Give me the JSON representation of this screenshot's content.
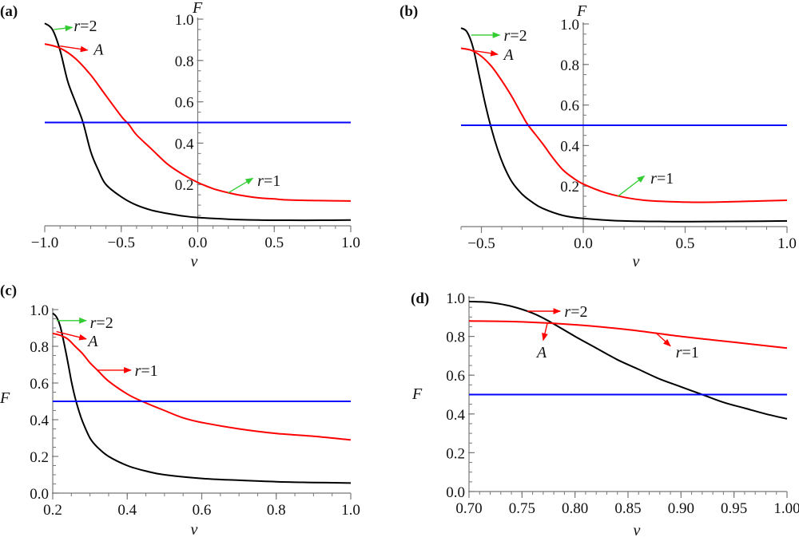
{
  "chart_data": [
    {
      "type": "line",
      "panel_label": "(a)",
      "title": "",
      "xlabel": "v",
      "ylabel": "F",
      "xlim": [
        -1.0,
        1.0
      ],
      "ylim": [
        0.0,
        1.0
      ],
      "x_ticks": [
        "−1.0",
        "−0.5",
        "0.0",
        "0.5",
        "1.0"
      ],
      "x_tick_values": [
        -1.0,
        -0.5,
        0.0,
        0.5,
        1.0
      ],
      "y_ticks": [
        "0.2",
        "0.4",
        "0.6",
        "0.8",
        "1.0"
      ],
      "y_tick_values": [
        0.2,
        0.4,
        0.6,
        0.8,
        1.0
      ],
      "y_axis_at_x": 0.0,
      "grid": false,
      "series": [
        {
          "name": "r=2",
          "color": "#000000",
          "x": [
            -1.0,
            -0.95,
            -0.9,
            -0.85,
            -0.8,
            -0.75,
            -0.7,
            -0.65,
            -0.6,
            -0.5,
            -0.4,
            -0.3,
            -0.2,
            -0.1,
            0.0,
            0.2,
            0.4,
            0.6,
            0.8,
            1.0
          ],
          "y": [
            0.98,
            0.95,
            0.85,
            0.7,
            0.6,
            0.5,
            0.36,
            0.27,
            0.2,
            0.14,
            0.1,
            0.075,
            0.06,
            0.048,
            0.04,
            0.032,
            0.028,
            0.027,
            0.027,
            0.028
          ]
        },
        {
          "name": "r=1",
          "color": "#ff0000",
          "x": [
            -1.0,
            -0.9,
            -0.8,
            -0.7,
            -0.6,
            -0.5,
            -0.45,
            -0.4,
            -0.3,
            -0.2,
            -0.1,
            0.0,
            0.1,
            0.2,
            0.3,
            0.4,
            0.5,
            0.6,
            0.8,
            1.0
          ],
          "y": [
            0.88,
            0.86,
            0.81,
            0.73,
            0.63,
            0.53,
            0.49,
            0.44,
            0.37,
            0.3,
            0.25,
            0.21,
            0.18,
            0.16,
            0.145,
            0.135,
            0.13,
            0.125,
            0.122,
            0.12
          ]
        },
        {
          "name": "F=0.5",
          "color": "#0000ff",
          "x": [
            -1.0,
            1.0
          ],
          "y": [
            0.5,
            0.5
          ]
        }
      ],
      "annotations": [
        {
          "text_pre": "r",
          "text_post": "=2",
          "arrow_color": "#33cc33",
          "from": [
            -0.94,
            0.95
          ],
          "to": [
            -0.82,
            0.96
          ],
          "text_at": [
            -0.81,
            0.97
          ]
        },
        {
          "text_pre": "A",
          "text_post": "",
          "arrow_color": "#ff0000",
          "from": [
            -0.9,
            0.87
          ],
          "to": [
            -0.72,
            0.85
          ],
          "text_at": [
            -0.68,
            0.855
          ]
        },
        {
          "text_pre": "r",
          "text_post": "=1",
          "arrow_color": "#33cc33",
          "from": [
            0.2,
            0.16
          ],
          "to": [
            0.36,
            0.23
          ],
          "text_at": [
            0.39,
            0.22
          ]
        }
      ]
    },
    {
      "type": "line",
      "panel_label": "(b)",
      "title": "",
      "xlabel": "v",
      "ylabel": "F",
      "xlim": [
        -0.6,
        1.0
      ],
      "ylim": [
        0.0,
        1.0
      ],
      "x_ticks": [
        "−0.5",
        "0.0",
        "0.5",
        "1.0"
      ],
      "x_tick_values": [
        -0.5,
        0.0,
        0.5,
        1.0
      ],
      "y_ticks": [
        "0.2",
        "0.4",
        "0.6",
        "0.8",
        "1.0"
      ],
      "y_tick_values": [
        0.2,
        0.4,
        0.6,
        0.8,
        1.0
      ],
      "y_axis_at_x": 0.0,
      "grid": false,
      "series": [
        {
          "name": "r=2",
          "color": "#000000",
          "x": [
            -0.6,
            -0.57,
            -0.54,
            -0.51,
            -0.48,
            -0.45,
            -0.42,
            -0.39,
            -0.35,
            -0.3,
            -0.25,
            -0.2,
            -0.1,
            0.0,
            0.2,
            0.4,
            0.6,
            0.8,
            1.0
          ],
          "y": [
            0.98,
            0.96,
            0.88,
            0.74,
            0.6,
            0.48,
            0.38,
            0.3,
            0.22,
            0.16,
            0.12,
            0.09,
            0.055,
            0.04,
            0.028,
            0.025,
            0.025,
            0.026,
            0.028
          ]
        },
        {
          "name": "r=1",
          "color": "#ff0000",
          "x": [
            -0.6,
            -0.55,
            -0.5,
            -0.45,
            -0.4,
            -0.35,
            -0.3,
            -0.27,
            -0.2,
            -0.15,
            -0.1,
            -0.05,
            0.0,
            0.1,
            0.2,
            0.3,
            0.4,
            0.55,
            0.7,
            0.85,
            1.0
          ],
          "y": [
            0.88,
            0.87,
            0.84,
            0.79,
            0.72,
            0.64,
            0.55,
            0.5,
            0.41,
            0.34,
            0.28,
            0.24,
            0.21,
            0.17,
            0.145,
            0.13,
            0.124,
            0.12,
            0.122,
            0.126,
            0.13
          ]
        },
        {
          "name": "F=0.5",
          "color": "#0000ff",
          "x": [
            -0.6,
            1.0
          ],
          "y": [
            0.5,
            0.5
          ]
        }
      ],
      "annotations": [
        {
          "text_pre": "r",
          "text_post": "=2",
          "arrow_color": "#33cc33",
          "from": [
            -0.55,
            0.945
          ],
          "to": [
            -0.41,
            0.945
          ],
          "text_at": [
            -0.39,
            0.945
          ]
        },
        {
          "text_pre": "A",
          "text_post": "",
          "arrow_color": "#ff0000",
          "from": [
            -0.55,
            0.87
          ],
          "to": [
            -0.42,
            0.85
          ],
          "text_at": [
            -0.39,
            0.85
          ]
        },
        {
          "text_pre": "r",
          "text_post": "=1",
          "arrow_color": "#33cc33",
          "from": [
            0.17,
            0.15
          ],
          "to": [
            0.3,
            0.25
          ],
          "text_at": [
            0.33,
            0.24
          ]
        }
      ]
    },
    {
      "type": "line",
      "panel_label": "(c)",
      "title": "",
      "xlabel": "v",
      "ylabel": "F",
      "xlim": [
        0.2,
        1.0
      ],
      "ylim": [
        0.0,
        1.0
      ],
      "x_ticks": [
        "0.2",
        "0.4",
        "0.6",
        "0.8",
        "1.0"
      ],
      "x_tick_values": [
        0.2,
        0.4,
        0.6,
        0.8,
        1.0
      ],
      "y_ticks": [
        "0.0",
        "0.2",
        "0.4",
        "0.6",
        "0.8",
        "1.0"
      ],
      "y_tick_values": [
        0.0,
        0.2,
        0.4,
        0.6,
        0.8,
        1.0
      ],
      "y_axis_at_x": 0.2,
      "grid": false,
      "series": [
        {
          "name": "r=2",
          "color": "#000000",
          "x": [
            0.2,
            0.21,
            0.22,
            0.23,
            0.24,
            0.25,
            0.26,
            0.27,
            0.28,
            0.3,
            0.32,
            0.35,
            0.4,
            0.45,
            0.5,
            0.6,
            0.7,
            0.8,
            0.9,
            1.0
          ],
          "y": [
            0.98,
            0.96,
            0.91,
            0.82,
            0.72,
            0.61,
            0.52,
            0.45,
            0.39,
            0.3,
            0.25,
            0.2,
            0.15,
            0.12,
            0.1,
            0.08,
            0.07,
            0.062,
            0.058,
            0.055
          ]
        },
        {
          "name": "r=1",
          "color": "#ff0000",
          "x": [
            0.2,
            0.22,
            0.24,
            0.26,
            0.28,
            0.3,
            0.32,
            0.35,
            0.4,
            0.44,
            0.5,
            0.55,
            0.6,
            0.7,
            0.8,
            0.9,
            1.0
          ],
          "y": [
            0.87,
            0.86,
            0.84,
            0.8,
            0.76,
            0.71,
            0.67,
            0.61,
            0.54,
            0.5,
            0.45,
            0.41,
            0.385,
            0.35,
            0.325,
            0.31,
            0.29
          ]
        },
        {
          "name": "F=0.5",
          "color": "#0000ff",
          "x": [
            0.2,
            1.0
          ],
          "y": [
            0.5,
            0.5
          ]
        }
      ],
      "annotations": [
        {
          "text_pre": "r",
          "text_post": "=2",
          "arrow_color": "#33cc33",
          "from": [
            0.21,
            0.94
          ],
          "to": [
            0.29,
            0.94
          ],
          "text_at": [
            0.3,
            0.93
          ]
        },
        {
          "text_pre": "A",
          "text_post": "",
          "arrow_color": "#ff0000",
          "from": [
            0.21,
            0.88
          ],
          "to": [
            0.29,
            0.84
          ],
          "text_at": [
            0.295,
            0.83
          ]
        },
        {
          "text_pre": "r",
          "text_post": "=1",
          "arrow_color": "#ff0000",
          "from": [
            0.32,
            0.67
          ],
          "to": [
            0.41,
            0.67
          ],
          "text_at": [
            0.42,
            0.67
          ]
        }
      ]
    },
    {
      "type": "line",
      "panel_label": "(d)",
      "title": "",
      "xlabel": "v",
      "ylabel": "F",
      "xlim": [
        0.7,
        1.0
      ],
      "ylim": [
        0.0,
        1.0
      ],
      "x_ticks": [
        "0.70",
        "0.75",
        "0.80",
        "0.85",
        "0.90",
        "0.95",
        "1.00"
      ],
      "x_tick_values": [
        0.7,
        0.75,
        0.8,
        0.85,
        0.9,
        0.95,
        1.0
      ],
      "y_ticks": [
        "0.0",
        "0.2",
        "0.4",
        "0.6",
        "0.8",
        "1.0"
      ],
      "y_tick_values": [
        0.0,
        0.2,
        0.4,
        0.6,
        0.8,
        1.0
      ],
      "y_axis_at_x": 0.7,
      "grid": false,
      "series": [
        {
          "name": "r=2",
          "color": "#000000",
          "x": [
            0.7,
            0.72,
            0.74,
            0.76,
            0.775,
            0.8,
            0.82,
            0.84,
            0.86,
            0.88,
            0.9,
            0.92,
            0.94,
            0.96,
            0.98,
            1.0
          ],
          "y": [
            0.98,
            0.975,
            0.955,
            0.92,
            0.88,
            0.8,
            0.74,
            0.68,
            0.63,
            0.58,
            0.54,
            0.5,
            0.46,
            0.43,
            0.4,
            0.375
          ]
        },
        {
          "name": "r=1",
          "color": "#ff0000",
          "x": [
            0.7,
            0.75,
            0.8,
            0.85,
            0.9,
            0.95,
            1.0
          ],
          "y": [
            0.88,
            0.875,
            0.86,
            0.835,
            0.8,
            0.77,
            0.74
          ]
        },
        {
          "name": "F=0.5",
          "color": "#0000ff",
          "x": [
            0.7,
            1.0
          ],
          "y": [
            0.5,
            0.5
          ]
        }
      ],
      "annotations": [
        {
          "text_pre": "r",
          "text_post": "=2",
          "arrow_color": "#ff0000",
          "from": [
            0.755,
            0.93
          ],
          "to": [
            0.786,
            0.93
          ],
          "text_at": [
            0.79,
            0.93
          ]
        },
        {
          "text_pre": "A",
          "text_post": "",
          "arrow_color": "#ff0000",
          "from": [
            0.774,
            0.87
          ],
          "to": [
            0.77,
            0.78
          ],
          "text_at": [
            0.764,
            0.72
          ]
        },
        {
          "text_pre": "r",
          "text_post": "=1",
          "arrow_color": "#ff0000",
          "from": [
            0.876,
            0.82
          ],
          "to": [
            0.89,
            0.75
          ],
          "text_at": [
            0.895,
            0.72
          ]
        }
      ]
    }
  ]
}
